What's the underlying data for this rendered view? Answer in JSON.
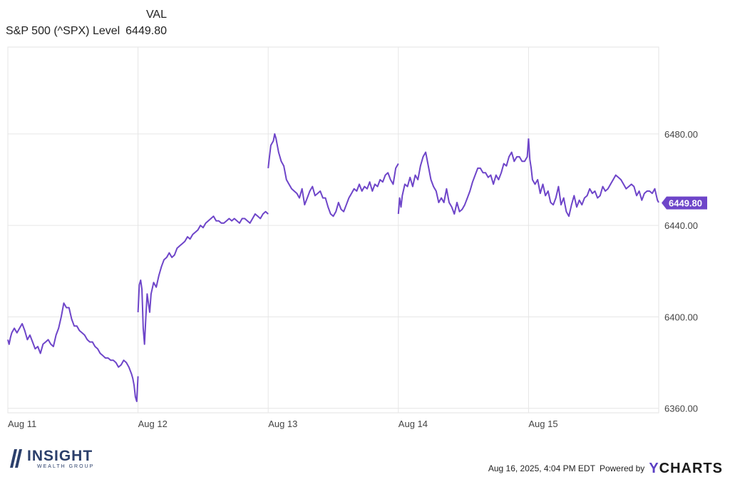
{
  "legend": {
    "column_header": "VAL",
    "series_name": "S&P 500 (^SPX) Level",
    "series_value": "6449.80"
  },
  "chart_data": {
    "type": "line",
    "x_unit": "trading days (Aug 11 – Aug 15, 2025)",
    "x_tick_labels": [
      "Aug 11",
      "Aug 12",
      "Aug 13",
      "Aug 14",
      "Aug 15"
    ],
    "y_tick_labels": [
      "6480.00",
      "6440.00",
      "6400.00",
      "6360.00"
    ],
    "y_ticks": [
      6480,
      6440,
      6400,
      6360
    ],
    "ylim": [
      6358,
      6518
    ],
    "xlim": [
      0,
      5
    ],
    "grid": true,
    "current_value": 6449.8,
    "current_value_label": "6449.80",
    "line_color": "#6e45c9",
    "series": [
      {
        "values": [
          [
            0.0,
            6390
          ],
          [
            0.01,
            6388
          ],
          [
            0.02,
            6391
          ],
          [
            0.03,
            6393
          ],
          [
            0.05,
            6395
          ],
          [
            0.07,
            6393
          ],
          [
            0.09,
            6395
          ],
          [
            0.11,
            6397
          ],
          [
            0.13,
            6394
          ],
          [
            0.15,
            6390
          ],
          [
            0.17,
            6392
          ],
          [
            0.19,
            6389
          ],
          [
            0.21,
            6386
          ],
          [
            0.23,
            6387
          ],
          [
            0.25,
            6384
          ],
          [
            0.27,
            6388
          ],
          [
            0.29,
            6389
          ],
          [
            0.31,
            6390
          ],
          [
            0.33,
            6388
          ],
          [
            0.35,
            6387
          ],
          [
            0.37,
            6392
          ],
          [
            0.39,
            6395
          ],
          [
            0.41,
            6400
          ],
          [
            0.42,
            6403
          ],
          [
            0.43,
            6406
          ],
          [
            0.45,
            6404
          ],
          [
            0.47,
            6404
          ],
          [
            0.49,
            6399
          ],
          [
            0.51,
            6396
          ],
          [
            0.53,
            6396
          ],
          [
            0.55,
            6394
          ],
          [
            0.57,
            6393
          ],
          [
            0.59,
            6392
          ],
          [
            0.61,
            6390
          ],
          [
            0.63,
            6389
          ],
          [
            0.65,
            6389
          ],
          [
            0.67,
            6387
          ],
          [
            0.69,
            6386
          ],
          [
            0.71,
            6384
          ],
          [
            0.73,
            6383
          ],
          [
            0.75,
            6382
          ],
          [
            0.77,
            6382
          ],
          [
            0.79,
            6381
          ],
          [
            0.81,
            6381
          ],
          [
            0.83,
            6380
          ],
          [
            0.85,
            6378
          ],
          [
            0.87,
            6379
          ],
          [
            0.89,
            6381
          ],
          [
            0.91,
            6380
          ],
          [
            0.93,
            6378
          ],
          [
            0.95,
            6375
          ],
          [
            0.96,
            6373
          ],
          [
            0.97,
            6370
          ],
          [
            0.98,
            6365
          ],
          [
            0.99,
            6363
          ],
          [
            1.0,
            6374
          ]
        ]
      },
      {
        "values": [
          [
            1.0,
            6402
          ],
          [
            1.01,
            6414
          ],
          [
            1.02,
            6416
          ],
          [
            1.03,
            6412
          ],
          [
            1.04,
            6395
          ],
          [
            1.05,
            6388
          ],
          [
            1.06,
            6400
          ],
          [
            1.07,
            6410
          ],
          [
            1.08,
            6406
          ],
          [
            1.09,
            6402
          ],
          [
            1.1,
            6410
          ],
          [
            1.12,
            6415
          ],
          [
            1.14,
            6413
          ],
          [
            1.16,
            6418
          ],
          [
            1.18,
            6422
          ],
          [
            1.2,
            6425
          ],
          [
            1.22,
            6426
          ],
          [
            1.24,
            6428
          ],
          [
            1.26,
            6426
          ],
          [
            1.28,
            6427
          ],
          [
            1.3,
            6430
          ],
          [
            1.32,
            6431
          ],
          [
            1.34,
            6432
          ],
          [
            1.36,
            6433
          ],
          [
            1.38,
            6435
          ],
          [
            1.4,
            6434
          ],
          [
            1.42,
            6436
          ],
          [
            1.44,
            6437
          ],
          [
            1.46,
            6438
          ],
          [
            1.48,
            6440
          ],
          [
            1.5,
            6439
          ],
          [
            1.52,
            6441
          ],
          [
            1.54,
            6442
          ],
          [
            1.56,
            6443
          ],
          [
            1.58,
            6444
          ],
          [
            1.6,
            6442
          ],
          [
            1.62,
            6442
          ],
          [
            1.64,
            6441
          ],
          [
            1.66,
            6441
          ],
          [
            1.68,
            6442
          ],
          [
            1.7,
            6443
          ],
          [
            1.72,
            6442
          ],
          [
            1.74,
            6443
          ],
          [
            1.76,
            6442
          ],
          [
            1.78,
            6441
          ],
          [
            1.8,
            6443
          ],
          [
            1.82,
            6443
          ],
          [
            1.84,
            6442
          ],
          [
            1.86,
            6441
          ],
          [
            1.88,
            6443
          ],
          [
            1.9,
            6445
          ],
          [
            1.92,
            6444
          ],
          [
            1.94,
            6443
          ],
          [
            1.96,
            6445
          ],
          [
            1.98,
            6446
          ],
          [
            2.0,
            6445
          ]
        ]
      },
      {
        "values": [
          [
            2.0,
            6465
          ],
          [
            2.01,
            6470
          ],
          [
            2.02,
            6475
          ],
          [
            2.04,
            6477
          ],
          [
            2.05,
            6480
          ],
          [
            2.06,
            6478
          ],
          [
            2.08,
            6472
          ],
          [
            2.1,
            6468
          ],
          [
            2.12,
            6466
          ],
          [
            2.14,
            6460
          ],
          [
            2.16,
            6458
          ],
          [
            2.18,
            6456
          ],
          [
            2.2,
            6455
          ],
          [
            2.22,
            6454
          ],
          [
            2.24,
            6452
          ],
          [
            2.26,
            6456
          ],
          [
            2.28,
            6449
          ],
          [
            2.3,
            6452
          ],
          [
            2.32,
            6455
          ],
          [
            2.34,
            6457
          ],
          [
            2.36,
            6453
          ],
          [
            2.38,
            6454
          ],
          [
            2.4,
            6455
          ],
          [
            2.42,
            6452
          ],
          [
            2.44,
            6452
          ],
          [
            2.46,
            6448
          ],
          [
            2.48,
            6445
          ],
          [
            2.5,
            6444
          ],
          [
            2.52,
            6446
          ],
          [
            2.54,
            6450
          ],
          [
            2.56,
            6447
          ],
          [
            2.58,
            6446
          ],
          [
            2.6,
            6449
          ],
          [
            2.62,
            6452
          ],
          [
            2.64,
            6454
          ],
          [
            2.66,
            6456
          ],
          [
            2.68,
            6455
          ],
          [
            2.7,
            6458
          ],
          [
            2.72,
            6455
          ],
          [
            2.74,
            6457
          ],
          [
            2.76,
            6456
          ],
          [
            2.78,
            6459
          ],
          [
            2.8,
            6455
          ],
          [
            2.82,
            6458
          ],
          [
            2.84,
            6457
          ],
          [
            2.86,
            6460
          ],
          [
            2.88,
            6459
          ],
          [
            2.9,
            6462
          ],
          [
            2.92,
            6463
          ],
          [
            2.94,
            6460
          ],
          [
            2.96,
            6458
          ],
          [
            2.98,
            6465
          ],
          [
            3.0,
            6467
          ]
        ]
      },
      {
        "values": [
          [
            3.0,
            6445
          ],
          [
            3.01,
            6452
          ],
          [
            3.02,
            6448
          ],
          [
            3.03,
            6453
          ],
          [
            3.05,
            6458
          ],
          [
            3.07,
            6457
          ],
          [
            3.09,
            6461
          ],
          [
            3.11,
            6457
          ],
          [
            3.13,
            6462
          ],
          [
            3.15,
            6460
          ],
          [
            3.17,
            6466
          ],
          [
            3.19,
            6470
          ],
          [
            3.21,
            6472
          ],
          [
            3.23,
            6466
          ],
          [
            3.25,
            6460
          ],
          [
            3.27,
            6457
          ],
          [
            3.29,
            6455
          ],
          [
            3.31,
            6450
          ],
          [
            3.33,
            6452
          ],
          [
            3.35,
            6450
          ],
          [
            3.37,
            6456
          ],
          [
            3.39,
            6450
          ],
          [
            3.41,
            6448
          ],
          [
            3.43,
            6445
          ],
          [
            3.45,
            6450
          ],
          [
            3.47,
            6446
          ],
          [
            3.49,
            6447
          ],
          [
            3.51,
            6449
          ],
          [
            3.53,
            6452
          ],
          [
            3.55,
            6455
          ],
          [
            3.57,
            6459
          ],
          [
            3.59,
            6462
          ],
          [
            3.61,
            6465
          ],
          [
            3.63,
            6465
          ],
          [
            3.65,
            6463
          ],
          [
            3.67,
            6463
          ],
          [
            3.69,
            6461
          ],
          [
            3.71,
            6462
          ],
          [
            3.73,
            6458
          ],
          [
            3.75,
            6462
          ],
          [
            3.77,
            6460
          ],
          [
            3.79,
            6463
          ],
          [
            3.81,
            6467
          ],
          [
            3.83,
            6466
          ],
          [
            3.85,
            6470
          ],
          [
            3.87,
            6472
          ],
          [
            3.89,
            6468
          ],
          [
            3.91,
            6470
          ],
          [
            3.93,
            6470
          ],
          [
            3.95,
            6468
          ],
          [
            3.97,
            6468
          ],
          [
            3.99,
            6470
          ],
          [
            4.0,
            6478
          ]
        ]
      },
      {
        "values": [
          [
            4.0,
            6478
          ],
          [
            4.01,
            6469
          ],
          [
            4.02,
            6465
          ],
          [
            4.03,
            6460
          ],
          [
            4.05,
            6458
          ],
          [
            4.07,
            6460
          ],
          [
            4.09,
            6454
          ],
          [
            4.11,
            6458
          ],
          [
            4.13,
            6453
          ],
          [
            4.15,
            6455
          ],
          [
            4.17,
            6450
          ],
          [
            4.19,
            6449
          ],
          [
            4.21,
            6452
          ],
          [
            4.23,
            6457
          ],
          [
            4.25,
            6449
          ],
          [
            4.27,
            6452
          ],
          [
            4.29,
            6446
          ],
          [
            4.31,
            6444
          ],
          [
            4.33,
            6449
          ],
          [
            4.35,
            6453
          ],
          [
            4.37,
            6448
          ],
          [
            4.39,
            6451
          ],
          [
            4.41,
            6449
          ],
          [
            4.43,
            6452
          ],
          [
            4.45,
            6453
          ],
          [
            4.47,
            6456
          ],
          [
            4.49,
            6454
          ],
          [
            4.51,
            6455
          ],
          [
            4.53,
            6452
          ],
          [
            4.55,
            6453
          ],
          [
            4.57,
            6457
          ],
          [
            4.59,
            6455
          ],
          [
            4.61,
            6456
          ],
          [
            4.63,
            6458
          ],
          [
            4.65,
            6460
          ],
          [
            4.67,
            6462
          ],
          [
            4.69,
            6461
          ],
          [
            4.71,
            6460
          ],
          [
            4.73,
            6458
          ],
          [
            4.75,
            6456
          ],
          [
            4.77,
            6457
          ],
          [
            4.79,
            6458
          ],
          [
            4.81,
            6457
          ],
          [
            4.83,
            6453
          ],
          [
            4.85,
            6455
          ],
          [
            4.87,
            6451
          ],
          [
            4.89,
            6454
          ],
          [
            4.91,
            6455
          ],
          [
            4.93,
            6455
          ],
          [
            4.95,
            6454
          ],
          [
            4.97,
            6456
          ],
          [
            4.99,
            6451
          ],
          [
            5.0,
            6450
          ]
        ]
      }
    ]
  },
  "brand": {
    "name_word": "INSIGHT",
    "name_sub": "WEALTH GROUP"
  },
  "footer": {
    "timestamp": "Aug 16, 2025, 4:04 PM EDT",
    "powered_by": "Powered by",
    "provider_y": "Y",
    "provider_rest": "CHARTS"
  }
}
